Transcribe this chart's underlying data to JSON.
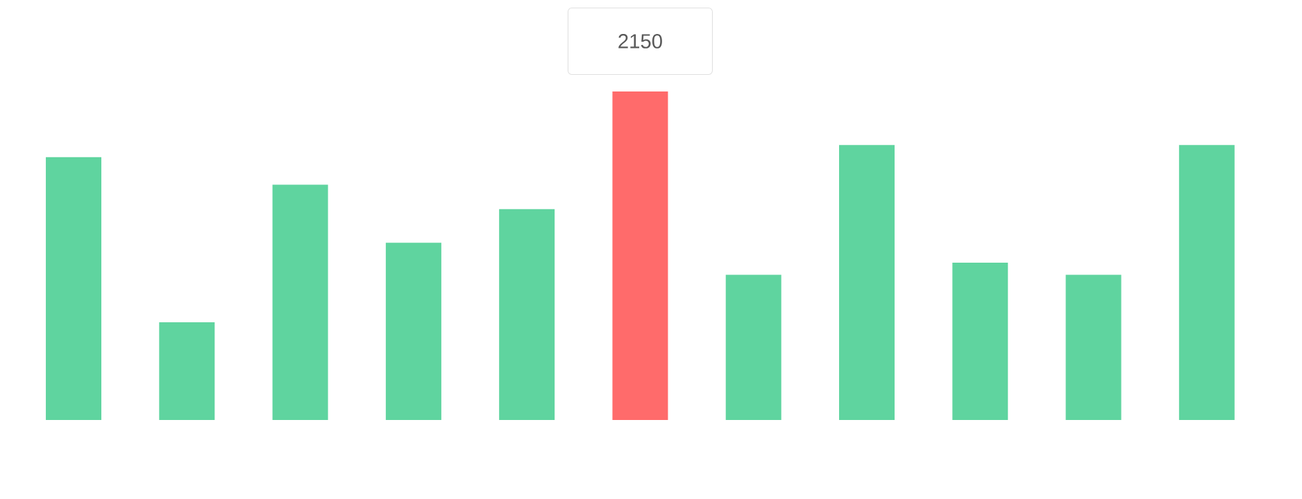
{
  "chart_data": {
    "type": "bar",
    "categories": [
      null,
      null,
      null,
      null,
      null,
      null,
      null,
      null,
      null,
      null,
      null
    ],
    "values": [
      1720,
      640,
      1540,
      1160,
      1380,
      2150,
      950,
      1800,
      1030,
      950,
      1800
    ],
    "colors": [
      "#5fd49f",
      "#5fd49f",
      "#5fd49f",
      "#5fd49f",
      "#5fd49f",
      "#ff6b6b",
      "#5fd49f",
      "#5fd49f",
      "#5fd49f",
      "#5fd49f",
      "#5fd49f"
    ],
    "value_labels": [
      null,
      null,
      null,
      null,
      null,
      "2150",
      null,
      null,
      null,
      null,
      null
    ]
  }
}
